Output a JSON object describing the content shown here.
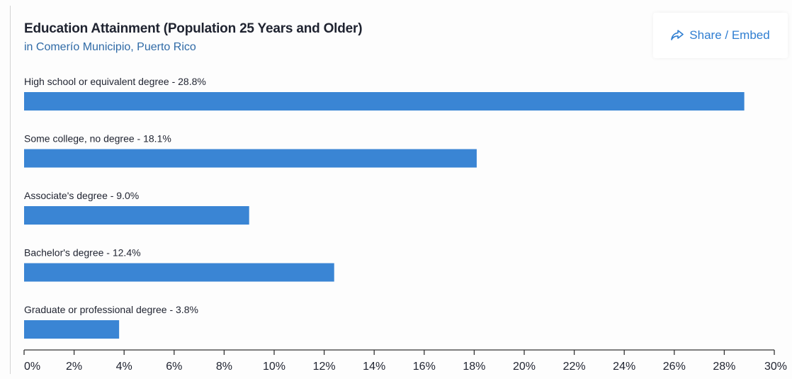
{
  "header": {
    "title": "Education Attainment (Population 25 Years and Older)",
    "subtitle": "in Comerío Municipio, Puerto Rico"
  },
  "share": {
    "label": "Share / Embed",
    "icon": "share-icon"
  },
  "colors": {
    "bar": "#3a85d4",
    "accent": "#2f7ed1"
  },
  "chart_data": {
    "type": "bar",
    "orientation": "horizontal",
    "title": "Education Attainment (Population 25 Years and Older)",
    "subtitle": "in Comerío Municipio, Puerto Rico",
    "categories": [
      "High school or equivalent degree",
      "Some college, no degree",
      "Associate's degree",
      "Bachelor's degree",
      "Graduate or professional degree"
    ],
    "labels": [
      "High school or equivalent degree - 28.8%",
      "Some college, no degree - 18.1%",
      "Associate's degree - 9.0%",
      "Bachelor's degree - 12.4%",
      "Graduate or professional degree - 3.8%"
    ],
    "values": [
      28.8,
      18.1,
      9.0,
      12.4,
      3.8
    ],
    "xlim": [
      0,
      30
    ],
    "xticks": [
      0,
      2,
      4,
      6,
      8,
      10,
      12,
      14,
      16,
      18,
      20,
      22,
      24,
      26,
      28,
      30
    ],
    "xtick_labels": [
      "0%",
      "2%",
      "4%",
      "6%",
      "8%",
      "10%",
      "12%",
      "14%",
      "16%",
      "18%",
      "20%",
      "22%",
      "24%",
      "26%",
      "28%",
      "30%"
    ],
    "xlabel": "",
    "ylabel": "",
    "grid": false,
    "legend": false
  }
}
